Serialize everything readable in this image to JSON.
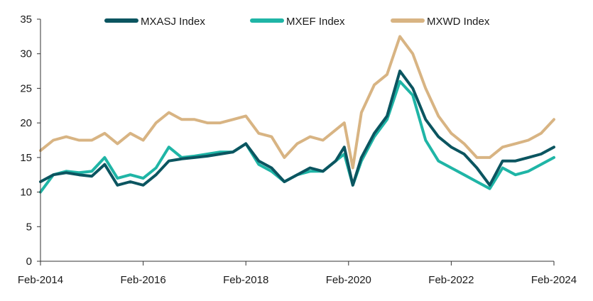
{
  "chart_data": {
    "type": "line",
    "title": "",
    "xlabel": "",
    "ylabel": "",
    "ylim": [
      0,
      35
    ],
    "yticks": [
      0,
      5,
      10,
      15,
      20,
      25,
      30,
      35
    ],
    "xticks": [
      "Feb-2014",
      "Feb-2016",
      "Feb-2018",
      "Feb-2020",
      "Feb-2022",
      "Feb-2024"
    ],
    "xrange": [
      "2014-02",
      "2024-02"
    ],
    "grid": false,
    "legend_position": "top",
    "x": [
      "2014-02",
      "2014-05",
      "2014-08",
      "2014-11",
      "2015-02",
      "2015-05",
      "2015-08",
      "2015-11",
      "2016-02",
      "2016-05",
      "2016-08",
      "2016-11",
      "2017-02",
      "2017-05",
      "2017-08",
      "2017-11",
      "2018-02",
      "2018-05",
      "2018-08",
      "2018-11",
      "2019-02",
      "2019-05",
      "2019-08",
      "2019-11",
      "2020-01",
      "2020-03",
      "2020-05",
      "2020-08",
      "2020-11",
      "2021-02",
      "2021-05",
      "2021-08",
      "2021-11",
      "2022-02",
      "2022-05",
      "2022-08",
      "2022-11",
      "2023-02",
      "2023-05",
      "2023-08",
      "2023-11",
      "2024-02"
    ],
    "series": [
      {
        "name": "MXASJ Index",
        "color": "#0b5560",
        "values": [
          11.5,
          12.5,
          12.8,
          12.5,
          12.3,
          14.0,
          11.0,
          11.5,
          11.0,
          12.5,
          14.5,
          14.8,
          15.0,
          15.2,
          15.5,
          15.8,
          17.0,
          14.5,
          13.5,
          11.5,
          12.5,
          13.5,
          13.0,
          14.5,
          16.5,
          11.0,
          15.0,
          18.5,
          21.0,
          27.5,
          25.0,
          20.5,
          18.0,
          16.5,
          15.5,
          13.5,
          11.0,
          14.5,
          14.5,
          15.0,
          15.5,
          16.5
        ]
      },
      {
        "name": "MXEF Index",
        "color": "#1fb5a6",
        "values": [
          10.0,
          12.5,
          13.0,
          12.8,
          13.0,
          15.0,
          12.0,
          12.5,
          12.0,
          13.5,
          16.5,
          15.0,
          15.2,
          15.5,
          15.8,
          15.8,
          17.0,
          14.0,
          13.0,
          11.5,
          12.5,
          13.0,
          13.0,
          14.5,
          15.5,
          11.0,
          14.5,
          18.0,
          20.5,
          26.0,
          24.0,
          17.5,
          14.5,
          13.5,
          12.5,
          11.5,
          10.5,
          13.5,
          12.5,
          13.0,
          14.0,
          15.0
        ]
      },
      {
        "name": "MXWD Index",
        "color": "#d8b483",
        "values": [
          16.0,
          17.5,
          18.0,
          17.5,
          17.5,
          18.5,
          17.0,
          18.5,
          17.5,
          20.0,
          21.5,
          20.5,
          20.5,
          20.0,
          20.0,
          20.5,
          21.0,
          18.5,
          18.0,
          15.0,
          17.0,
          18.0,
          17.5,
          19.0,
          20.0,
          13.5,
          21.5,
          25.5,
          27.0,
          32.5,
          30.0,
          25.0,
          21.0,
          18.5,
          17.0,
          15.0,
          15.0,
          16.5,
          17.0,
          17.5,
          18.5,
          20.5
        ]
      }
    ]
  }
}
